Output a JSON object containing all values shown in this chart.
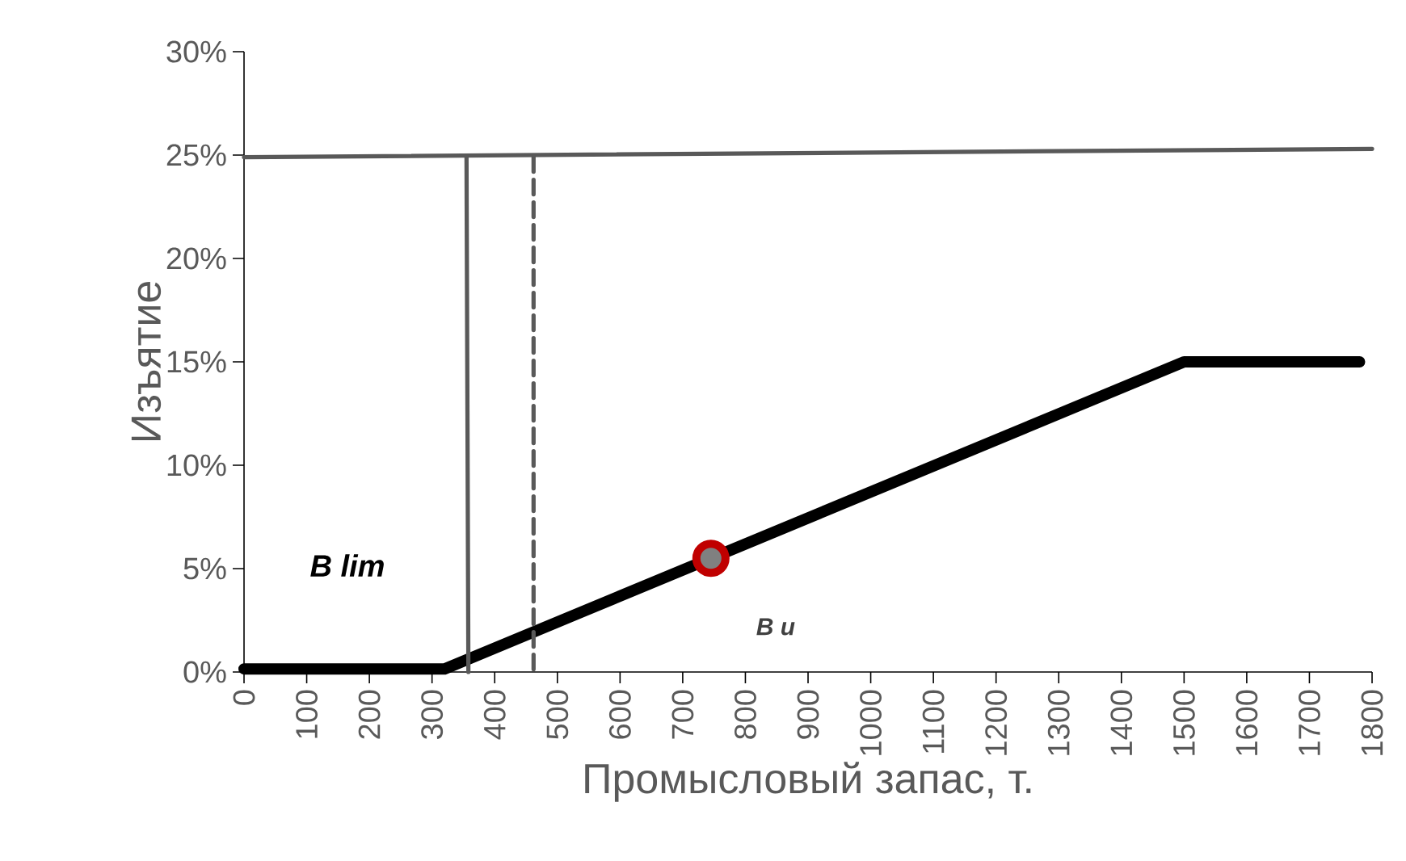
{
  "chart_data": {
    "type": "line",
    "xlabel": "Промысловый запас, т.",
    "ylabel": "Изъятие",
    "xlim": [
      0,
      1800
    ],
    "xticks": [
      0,
      100,
      200,
      300,
      400,
      500,
      600,
      700,
      800,
      900,
      1000,
      1100,
      1200,
      1300,
      1400,
      1500,
      1600,
      1700,
      1800
    ],
    "ylim": [
      0,
      30
    ],
    "yticks": [
      {
        "value": 0,
        "label": "0%"
      },
      {
        "value": 5,
        "label": "5%"
      },
      {
        "value": 10,
        "label": "10%"
      },
      {
        "value": 15,
        "label": "15%"
      },
      {
        "value": 20,
        "label": "20%"
      },
      {
        "value": 25,
        "label": "25%"
      },
      {
        "value": 30,
        "label": "30%"
      }
    ],
    "series": [
      {
        "color": "#000000",
        "x": [
          0,
          320,
          1500,
          1780
        ],
        "values": [
          0.15,
          0.15,
          15,
          15
        ]
      },
      {
        "color": "#595959",
        "x": [
          0,
          1800
        ],
        "values": [
          24.9,
          25.3
        ]
      },
      {
        "color": "#595959",
        "x": [
          355,
          358
        ],
        "values": [
          24.9,
          0
        ]
      },
      {
        "color": "#595959",
        "line_style": "dashed",
        "x": [
          462,
          462
        ],
        "values": [
          24.9,
          0
        ]
      },
      {
        "type": "scatter",
        "color": "#c00000",
        "marker": "circle",
        "x": [
          745
        ],
        "values": [
          5.5
        ]
      }
    ],
    "annotations": [
      "B lim",
      "B u"
    ]
  }
}
